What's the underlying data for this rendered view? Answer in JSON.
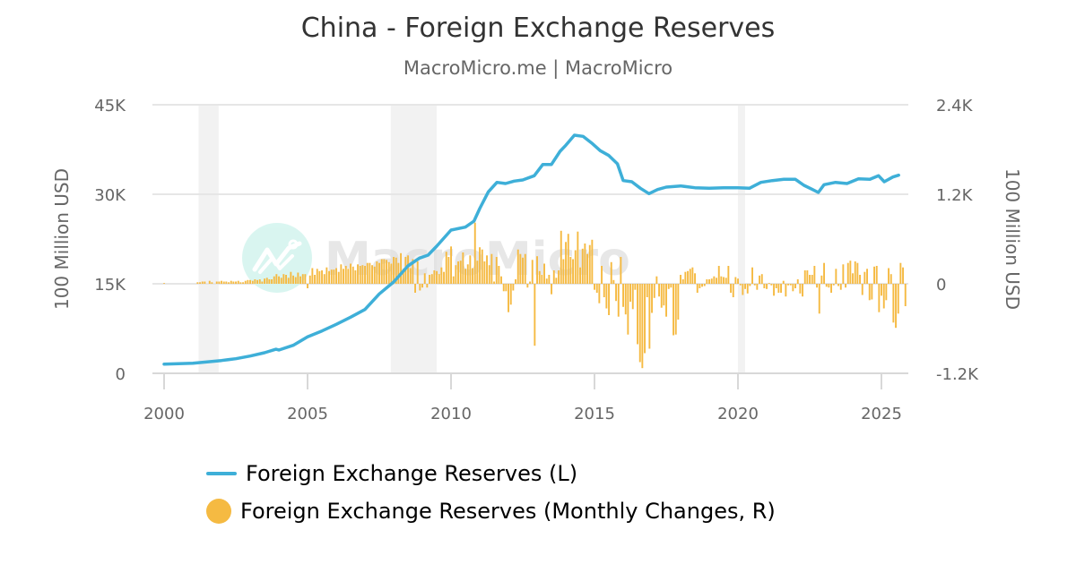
{
  "header": {
    "title": "China - Foreign Exchange Reserves",
    "subtitle": "MacroMicro.me | MacroMicro"
  },
  "watermark": "MacroMicro",
  "legend": {
    "line_label": "Foreign Exchange Reserves (L)",
    "bar_label": "Foreign Exchange Reserves (Monthly Changes, R)"
  },
  "colors": {
    "line": "#3eafd8",
    "bar": "#f5ba42",
    "recession": "#f2f2f2",
    "grid": "#e6e6e6"
  },
  "chart_data": {
    "type": "line+bar",
    "title": "China - Foreign Exchange Reserves",
    "subtitle": "MacroMicro.me | MacroMicro",
    "xlabel": "",
    "ylabel_left": "100 Million USD",
    "ylabel_right": "100 Million USD",
    "x_ticks": [
      "2000",
      "2005",
      "2010",
      "2015",
      "2020",
      "2025"
    ],
    "y_left_ticks": [
      "0",
      "15K",
      "30K",
      "45K"
    ],
    "y_left_range": [
      0,
      45000
    ],
    "y_right_ticks": [
      "-1.2K",
      "0",
      "1.2K",
      "2.4K"
    ],
    "y_right_range": [
      -1200,
      2400
    ],
    "grid": true,
    "legend_position": "bottom",
    "recessions": [
      [
        2001.2,
        2001.9
      ],
      [
        2007.9,
        2009.5
      ],
      [
        2020.0,
        2020.25
      ]
    ],
    "series": [
      {
        "name": "Foreign Exchange Reserves (L)",
        "axis": "left",
        "type": "line",
        "x": [
          2000.0,
          2000.5,
          2001.0,
          2001.5,
          2002.0,
          2002.5,
          2003.0,
          2003.5,
          2003.9,
          2004.0,
          2004.5,
          2005.0,
          2005.5,
          2006.0,
          2006.5,
          2007.0,
          2007.5,
          2008.0,
          2008.5,
          2008.9,
          2009.2,
          2009.5,
          2010.0,
          2010.5,
          2010.8,
          2011.0,
          2011.3,
          2011.6,
          2011.9,
          2012.2,
          2012.5,
          2012.9,
          2013.2,
          2013.5,
          2013.8,
          2014.0,
          2014.3,
          2014.6,
          2014.9,
          2015.2,
          2015.5,
          2015.8,
          2016.0,
          2016.3,
          2016.6,
          2016.9,
          2017.2,
          2017.5,
          2018.0,
          2018.5,
          2019.0,
          2019.5,
          2020.0,
          2020.4,
          2020.8,
          2021.2,
          2021.6,
          2022.0,
          2022.3,
          2022.6,
          2022.8,
          2023.0,
          2023.4,
          2023.8,
          2024.2,
          2024.6,
          2024.9,
          2025.1,
          2025.4,
          2025.6
        ],
        "values": [
          1550,
          1600,
          1700,
          1900,
          2150,
          2450,
          2900,
          3450,
          4030,
          3900,
          4700,
          6100,
          7100,
          8200,
          9400,
          10700,
          13300,
          15300,
          18000,
          19300,
          19800,
          21300,
          24000,
          24500,
          25500,
          27600,
          30400,
          32000,
          31800,
          32200,
          32400,
          33100,
          35000,
          35000,
          37200,
          38200,
          39900,
          39700,
          38600,
          37300,
          36500,
          35100,
          32300,
          32100,
          31000,
          30100,
          30800,
          31200,
          31400,
          31100,
          31000,
          31100,
          31100,
          31000,
          32000,
          32300,
          32500,
          32500,
          31500,
          30800,
          30300,
          31600,
          32000,
          31800,
          32600,
          32500,
          33100,
          32100,
          32900,
          33200
        ]
      },
      {
        "name": "Foreign Exchange Reserves (Monthly Changes, R)",
        "axis": "right",
        "type": "bar",
        "note": "Approximate monthly changes read from the chart (100 Million USD)",
        "start": 2000.0,
        "step_months": 1,
        "values": [
          10,
          0,
          0,
          0,
          0,
          0,
          0,
          0,
          0,
          0,
          0,
          0,
          0,
          0,
          20,
          20,
          30,
          30,
          0,
          40,
          20,
          0,
          30,
          30,
          40,
          30,
          30,
          20,
          40,
          30,
          30,
          40,
          20,
          20,
          40,
          50,
          50,
          40,
          60,
          50,
          60,
          30,
          70,
          80,
          60,
          60,
          100,
          130,
          100,
          80,
          130,
          120,
          80,
          160,
          110,
          90,
          150,
          100,
          130,
          130,
          -60,
          110,
          210,
          120,
          200,
          170,
          180,
          130,
          220,
          170,
          190,
          190,
          210,
          160,
          260,
          200,
          240,
          200,
          270,
          230,
          180,
          260,
          240,
          250,
          240,
          280,
          280,
          250,
          230,
          300,
          280,
          330,
          330,
          320,
          290,
          270,
          360,
          350,
          280,
          410,
          200,
          360,
          380,
          210,
          330,
          -120,
          300,
          -90,
          -50,
          140,
          -50,
          120,
          130,
          180,
          170,
          130,
          220,
          160,
          430,
          360,
          500,
          100,
          250,
          300,
          310,
          420,
          200,
          260,
          380,
          210,
          820,
          310,
          490,
          460,
          300,
          380,
          250,
          400,
          30,
          360,
          240,
          100,
          -100,
          -100,
          -380,
          -280,
          -90,
          60,
          460,
          400,
          350,
          400,
          -50,
          30,
          320,
          -830,
          370,
          170,
          120,
          270,
          70,
          120,
          -140,
          180,
          80,
          180,
          710,
          330,
          560,
          670,
          360,
          330,
          450,
          700,
          220,
          470,
          540,
          400,
          520,
          590,
          -80,
          -120,
          -260,
          240,
          -180,
          -330,
          -420,
          290,
          50,
          -230,
          -440,
          360,
          -310,
          -410,
          -680,
          -240,
          -340,
          -80,
          -810,
          -1050,
          -1130,
          -930,
          -180,
          -870,
          -390,
          -190,
          100,
          -170,
          -320,
          -290,
          -440,
          -70,
          -50,
          -690,
          -680,
          -480,
          120,
          60,
          160,
          170,
          200,
          220,
          140,
          -120,
          -60,
          -40,
          -30,
          60,
          60,
          70,
          100,
          80,
          240,
          100,
          90,
          80,
          240,
          -120,
          -180,
          90,
          70,
          -20,
          -150,
          -70,
          -130,
          -30,
          220,
          -20,
          -80,
          110,
          130,
          -60,
          -70,
          10,
          -20,
          -160,
          -60,
          -120,
          -120,
          40,
          -170,
          -20,
          -20,
          -100,
          -60,
          60,
          -130,
          -170,
          180,
          180,
          120,
          120,
          240,
          -50,
          -400,
          110,
          280,
          -40,
          -50,
          -120,
          -20,
          200,
          -30,
          -80,
          260,
          -50,
          280,
          310,
          140,
          300,
          280,
          120,
          -150,
          160,
          200,
          -220,
          -210,
          230,
          240,
          -380,
          -160,
          -330,
          -220,
          210,
          130,
          -520,
          -590,
          -400,
          280,
          220,
          -300,
          -210,
          210,
          550,
          520,
          480,
          -100,
          -210,
          -100,
          -400,
          -310,
          -490,
          370,
          -330,
          -190,
          -100,
          -670,
          100,
          250,
          210,
          220,
          120,
          60,
          -100,
          -380,
          -250,
          250,
          100,
          -180,
          -300,
          130,
          -750,
          300,
          -580,
          -500,
          150,
          220,
          -250,
          -140,
          0,
          160,
          -580,
          -370,
          580,
          550,
          -200,
          -180,
          -30,
          -80,
          130,
          260,
          -40,
          150,
          120,
          170,
          170,
          -150,
          180,
          120,
          -30,
          -350,
          -60,
          320,
          180,
          200,
          160,
          -200,
          190,
          130
        ]
      }
    ]
  }
}
